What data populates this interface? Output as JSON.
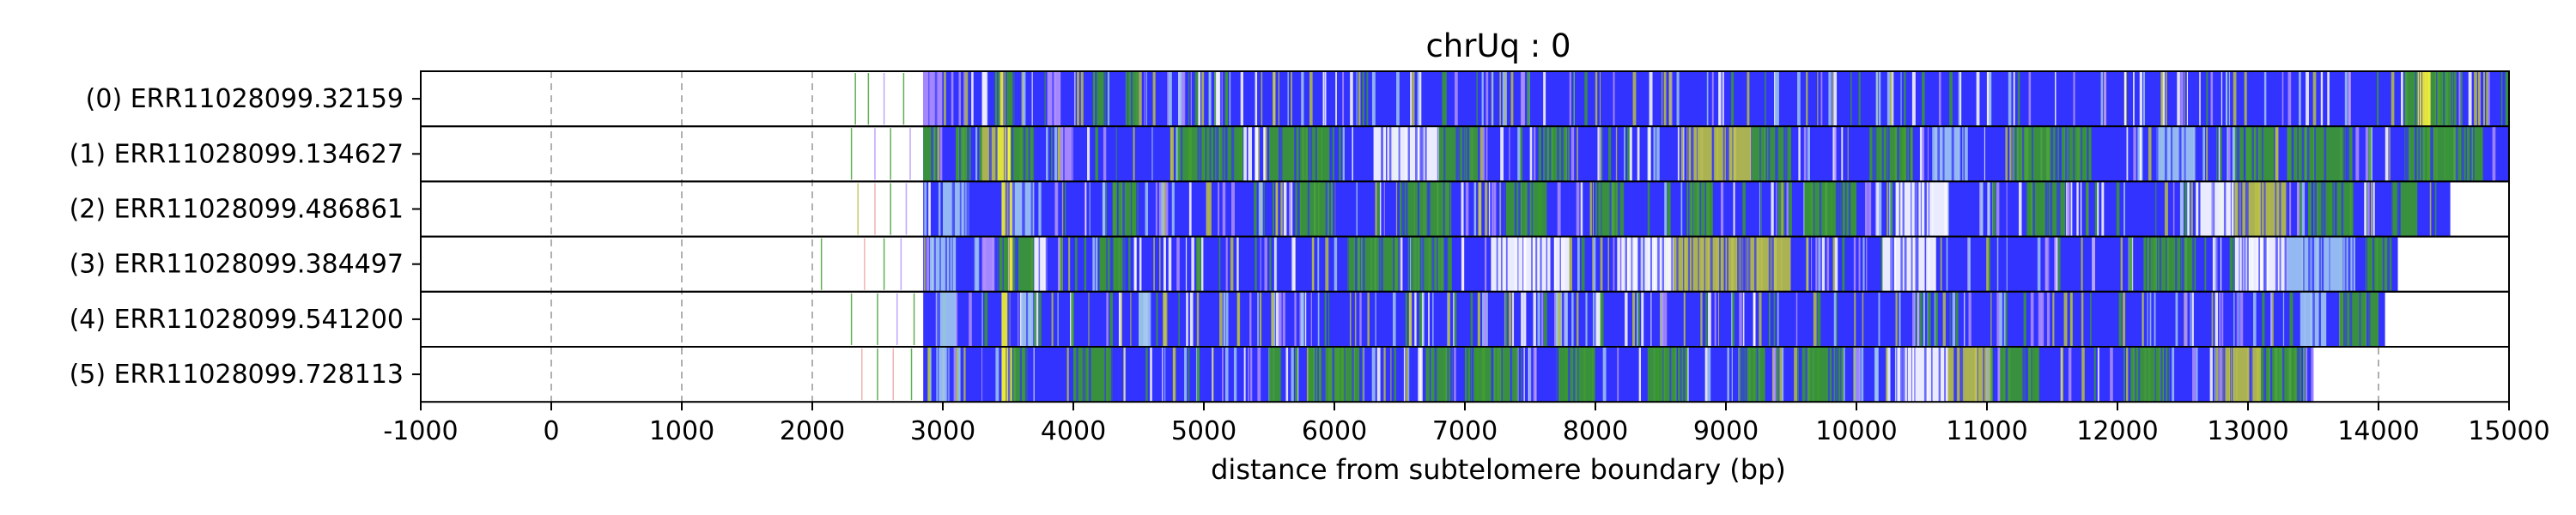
{
  "chart_data": {
    "type": "heatmap",
    "title": "chrUq : 0",
    "xlabel": "distance from subtelomere boundary (bp)",
    "ylabel": "",
    "xlim": [
      -1000,
      15000
    ],
    "xticks": [
      -1000,
      0,
      1000,
      2000,
      3000,
      4000,
      5000,
      6000,
      7000,
      8000,
      9000,
      10000,
      11000,
      12000,
      13000,
      14000,
      15000
    ],
    "xtick_labels": [
      "-1000",
      "0",
      "1000",
      "2000",
      "3000",
      "4000",
      "5000",
      "6000",
      "7000",
      "8000",
      "9000",
      "10000",
      "11000",
      "12000",
      "13000",
      "14000",
      "15000"
    ],
    "grid": "vertical dashed at x ticks",
    "colors": {
      "blue": "#3333ff",
      "green": "#3a9a2a",
      "yellow": "#f2f22a",
      "olive": "#b8c040",
      "white": "#ffffff",
      "lavender": "#b090ff",
      "light_blue": "#9fc7ef",
      "pink": "#f0a0a0"
    },
    "reads": [
      {
        "label": "(0) ERR11028099.32159",
        "read_end": 15000,
        "base": "blue",
        "segments": [
          {
            "start": 2850,
            "end": 3000,
            "color": "lavender"
          },
          {
            "start": 3300,
            "end": 3350,
            "color": "white"
          },
          {
            "start": 3400,
            "end": 3440,
            "color": "green"
          },
          {
            "start": 3440,
            "end": 3480,
            "color": "yellow"
          },
          {
            "start": 3480,
            "end": 3550,
            "color": "green"
          },
          {
            "start": 3800,
            "end": 3900,
            "color": "lavender"
          },
          {
            "start": 4150,
            "end": 4250,
            "color": "green"
          },
          {
            "start": 4400,
            "end": 4500,
            "color": "green"
          },
          {
            "start": 14200,
            "end": 14300,
            "color": "green"
          },
          {
            "start": 14300,
            "end": 14400,
            "color": "yellow"
          },
          {
            "start": 14400,
            "end": 14600,
            "color": "green"
          }
        ]
      },
      {
        "label": "(1) ERR11028099.134627",
        "read_end": 15000,
        "base": "blue",
        "segments": [
          {
            "start": 2850,
            "end": 2950,
            "color": "green"
          },
          {
            "start": 3100,
            "end": 3200,
            "color": "green"
          },
          {
            "start": 3300,
            "end": 3420,
            "color": "olive"
          },
          {
            "start": 3420,
            "end": 3520,
            "color": "yellow"
          },
          {
            "start": 3520,
            "end": 3700,
            "color": "green"
          },
          {
            "start": 3900,
            "end": 4000,
            "color": "lavender"
          },
          {
            "start": 4800,
            "end": 5300,
            "color": "green"
          },
          {
            "start": 5500,
            "end": 6000,
            "color": "green"
          },
          {
            "start": 6300,
            "end": 6800,
            "color": "white"
          },
          {
            "start": 6800,
            "end": 7100,
            "color": "green"
          },
          {
            "start": 7600,
            "end": 7800,
            "color": "green"
          },
          {
            "start": 8700,
            "end": 9200,
            "color": "olive"
          },
          {
            "start": 9200,
            "end": 9500,
            "color": "green"
          },
          {
            "start": 10100,
            "end": 10400,
            "color": "green"
          },
          {
            "start": 10600,
            "end": 10800,
            "color": "light_blue"
          },
          {
            "start": 11200,
            "end": 11800,
            "color": "green"
          },
          {
            "start": 12300,
            "end": 12600,
            "color": "light_blue"
          },
          {
            "start": 12900,
            "end": 13200,
            "color": "green"
          },
          {
            "start": 13300,
            "end": 13800,
            "color": "green"
          },
          {
            "start": 14200,
            "end": 14800,
            "color": "green"
          }
        ]
      },
      {
        "label": "(2) ERR11028099.486861",
        "read_end": 14550,
        "base": "blue",
        "segments": [
          {
            "start": 3000,
            "end": 3200,
            "color": "light_blue"
          },
          {
            "start": 3450,
            "end": 3530,
            "color": "yellow"
          },
          {
            "start": 3530,
            "end": 3700,
            "color": "light_blue"
          },
          {
            "start": 4300,
            "end": 4500,
            "color": "green"
          },
          {
            "start": 5700,
            "end": 6000,
            "color": "green"
          },
          {
            "start": 6500,
            "end": 6900,
            "color": "green"
          },
          {
            "start": 7300,
            "end": 7600,
            "color": "green"
          },
          {
            "start": 8000,
            "end": 8200,
            "color": "green"
          },
          {
            "start": 8700,
            "end": 8900,
            "color": "green"
          },
          {
            "start": 9600,
            "end": 10000,
            "color": "green"
          },
          {
            "start": 10300,
            "end": 10700,
            "color": "white"
          },
          {
            "start": 11300,
            "end": 11600,
            "color": "green"
          },
          {
            "start": 12600,
            "end": 12900,
            "color": "white"
          },
          {
            "start": 12900,
            "end": 13300,
            "color": "olive"
          },
          {
            "start": 13500,
            "end": 13800,
            "color": "green"
          },
          {
            "start": 14100,
            "end": 14300,
            "color": "green"
          }
        ]
      },
      {
        "label": "(3) ERR11028099.384497",
        "read_end": 14150,
        "base": "blue",
        "segments": [
          {
            "start": 2900,
            "end": 3100,
            "color": "light_blue"
          },
          {
            "start": 3300,
            "end": 3420,
            "color": "lavender"
          },
          {
            "start": 3420,
            "end": 3500,
            "color": "green"
          },
          {
            "start": 3500,
            "end": 3540,
            "color": "yellow"
          },
          {
            "start": 3540,
            "end": 3700,
            "color": "green"
          },
          {
            "start": 3700,
            "end": 3800,
            "color": "white"
          },
          {
            "start": 4200,
            "end": 4400,
            "color": "green"
          },
          {
            "start": 6100,
            "end": 6500,
            "color": "green"
          },
          {
            "start": 6600,
            "end": 6900,
            "color": "green"
          },
          {
            "start": 7200,
            "end": 7800,
            "color": "white"
          },
          {
            "start": 8200,
            "end": 8600,
            "color": "white"
          },
          {
            "start": 8600,
            "end": 9500,
            "color": "olive"
          },
          {
            "start": 10200,
            "end": 10600,
            "color": "white"
          },
          {
            "start": 12200,
            "end": 12600,
            "color": "green"
          },
          {
            "start": 12900,
            "end": 13300,
            "color": "white"
          },
          {
            "start": 13300,
            "end": 13800,
            "color": "light_blue"
          },
          {
            "start": 13900,
            "end": 14100,
            "color": "green"
          }
        ]
      },
      {
        "label": "(4) ERR11028099.541200",
        "read_end": 14050,
        "base": "blue",
        "segments": [
          {
            "start": 2950,
            "end": 3100,
            "color": "light_blue"
          },
          {
            "start": 3450,
            "end": 3520,
            "color": "yellow"
          },
          {
            "start": 3600,
            "end": 3700,
            "color": "light_blue"
          },
          {
            "start": 4500,
            "end": 4600,
            "color": "light_blue"
          },
          {
            "start": 13400,
            "end": 13600,
            "color": "light_blue"
          },
          {
            "start": 13700,
            "end": 14000,
            "color": "green"
          }
        ]
      },
      {
        "label": "(5) ERR11028099.728113",
        "read_end": 13500,
        "base": "blue",
        "segments": [
          {
            "start": 2950,
            "end": 3050,
            "color": "light_blue"
          },
          {
            "start": 3450,
            "end": 3530,
            "color": "yellow"
          },
          {
            "start": 3530,
            "end": 3650,
            "color": "green"
          },
          {
            "start": 4000,
            "end": 4300,
            "color": "green"
          },
          {
            "start": 5500,
            "end": 5600,
            "color": "green"
          },
          {
            "start": 5800,
            "end": 6200,
            "color": "green"
          },
          {
            "start": 6700,
            "end": 6900,
            "color": "green"
          },
          {
            "start": 7000,
            "end": 7400,
            "color": "green"
          },
          {
            "start": 7700,
            "end": 8000,
            "color": "green"
          },
          {
            "start": 8400,
            "end": 8700,
            "color": "green"
          },
          {
            "start": 9100,
            "end": 9300,
            "color": "green"
          },
          {
            "start": 9600,
            "end": 9900,
            "color": "green"
          },
          {
            "start": 10300,
            "end": 10700,
            "color": "white"
          },
          {
            "start": 10700,
            "end": 11000,
            "color": "olive"
          },
          {
            "start": 11100,
            "end": 11400,
            "color": "green"
          },
          {
            "start": 12100,
            "end": 12400,
            "color": "green"
          },
          {
            "start": 12800,
            "end": 13100,
            "color": "olive"
          },
          {
            "start": 13100,
            "end": 13400,
            "color": "green"
          }
        ]
      }
    ],
    "pre_read_lines": [
      {
        "row": 0,
        "x": 2330,
        "color": "green"
      },
      {
        "row": 0,
        "x": 2430,
        "color": "green"
      },
      {
        "row": 0,
        "x": 2550,
        "color": "lavender"
      },
      {
        "row": 0,
        "x": 2700,
        "color": "green"
      },
      {
        "row": 1,
        "x": 2300,
        "color": "green"
      },
      {
        "row": 1,
        "x": 2480,
        "color": "lavender"
      },
      {
        "row": 1,
        "x": 2600,
        "color": "green"
      },
      {
        "row": 1,
        "x": 2750,
        "color": "lavender"
      },
      {
        "row": 2,
        "x": 2350,
        "color": "olive"
      },
      {
        "row": 2,
        "x": 2480,
        "color": "pink"
      },
      {
        "row": 2,
        "x": 2600,
        "color": "green"
      },
      {
        "row": 2,
        "x": 2720,
        "color": "lavender"
      },
      {
        "row": 3,
        "x": 2070,
        "color": "green"
      },
      {
        "row": 3,
        "x": 2400,
        "color": "pink"
      },
      {
        "row": 3,
        "x": 2550,
        "color": "green"
      },
      {
        "row": 3,
        "x": 2680,
        "color": "lavender"
      },
      {
        "row": 4,
        "x": 2300,
        "color": "green"
      },
      {
        "row": 4,
        "x": 2500,
        "color": "green"
      },
      {
        "row": 4,
        "x": 2650,
        "color": "lavender"
      },
      {
        "row": 4,
        "x": 2780,
        "color": "green"
      },
      {
        "row": 5,
        "x": 2380,
        "color": "pink"
      },
      {
        "row": 5,
        "x": 2500,
        "color": "green"
      },
      {
        "row": 5,
        "x": 2620,
        "color": "pink"
      },
      {
        "row": 5,
        "x": 2760,
        "color": "green"
      }
    ],
    "read_start": 2850
  }
}
